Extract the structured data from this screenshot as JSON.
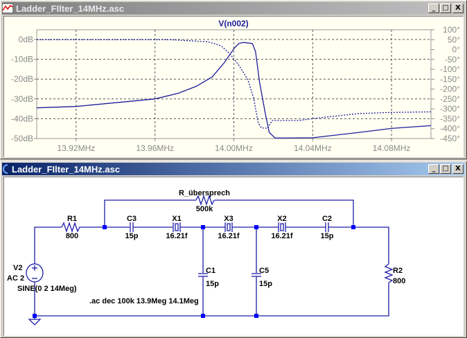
{
  "plot_window": {
    "title": "Ladder_FIlter_14MHz.asc",
    "icon": "waveform-icon",
    "buttons": [
      "_",
      "□",
      "X"
    ]
  },
  "schematic_window": {
    "title": "Ladder_FIlter_14MHz.asc",
    "icon": "schematic-icon",
    "buttons": [
      "_",
      "□",
      "X"
    ]
  },
  "colors": {
    "trace": "#1c1c9c",
    "axis_text": "#8a8a8a",
    "plot_bg": "#fffff2",
    "wire": "#1c1ca8",
    "junction": "#0000ff"
  },
  "chart_data": {
    "type": "line",
    "title": "V(n002)",
    "xlabel": "",
    "ylabel": "",
    "y2label": "",
    "xlim": [
      13.9,
      14.1
    ],
    "ylim": [
      -50,
      0
    ],
    "y2lim": [
      -450,
      100
    ],
    "grid": true,
    "x_ticks": [
      "13.92MHz",
      "13.96MHz",
      "14.00MHz",
      "14.04MHz",
      "14.08MHz"
    ],
    "x_tick_values": [
      13.92,
      13.96,
      14.0,
      14.04,
      14.08
    ],
    "y_ticks": [
      "0dB",
      "-10dB",
      "-20dB",
      "-30dB",
      "-40dB",
      "-50dB"
    ],
    "y_tick_values": [
      0,
      -10,
      -20,
      -30,
      -40,
      -50
    ],
    "y2_ticks": [
      "100°",
      "50°",
      "0°",
      "-50°",
      "-100°",
      "-150°",
      "-200°",
      "-250°",
      "-300°",
      "-350°",
      "-400°",
      "-450°"
    ],
    "y2_tick_values": [
      100,
      50,
      0,
      -50,
      -100,
      -150,
      -200,
      -250,
      -300,
      -350,
      -400,
      -450
    ],
    "series": [
      {
        "style": "solid",
        "axis": "left",
        "x": [
          13.9,
          13.92,
          13.96,
          13.972,
          13.981,
          13.989,
          13.995,
          14.0003,
          14.0026,
          14.005,
          14.0094,
          14.011,
          14.013,
          14.016,
          14.018,
          14.021,
          14.04,
          14.063,
          14.08,
          14.1
        ],
        "y": [
          -34.5,
          -33.8,
          -30.0,
          -27.1,
          -23.6,
          -18.9,
          -11.9,
          -4.3,
          -2.0,
          -1.5,
          -2.0,
          -6.1,
          -21.3,
          -37.6,
          -47,
          -49.8,
          -49.6,
          -47,
          -44.9,
          -43.5
        ]
      },
      {
        "style": "dashed",
        "axis": "right",
        "x": [
          13.9,
          13.968,
          13.987,
          13.9935,
          13.998,
          14.0026,
          14.007,
          14.01,
          14.0124,
          14.014,
          14.017,
          14.0195,
          14.033,
          14.04,
          14.063,
          14.08,
          14.1
        ],
        "y": [
          50,
          50,
          39,
          19,
          -22,
          -80,
          -150,
          -244,
          -373,
          -396,
          -398,
          -359,
          -359,
          -349,
          -324,
          -318,
          -315
        ]
      }
    ]
  },
  "schematic": {
    "R1": {
      "name": "R1",
      "value": "800"
    },
    "R_cross": {
      "name": "R_übersprech",
      "value": "500k"
    },
    "C3": {
      "name": "C3",
      "value": "15p"
    },
    "X1": {
      "name": "X1",
      "value": "16.21f"
    },
    "X3": {
      "name": "X3",
      "value": "16.21f"
    },
    "X2": {
      "name": "X2",
      "value": "16.21f"
    },
    "C2": {
      "name": "C2",
      "value": "15p"
    },
    "C1": {
      "name": "C1",
      "value": "15p"
    },
    "C5": {
      "name": "C5",
      "value": "15p"
    },
    "R2": {
      "name": "R2",
      "value": "800"
    },
    "V2": {
      "name": "V2",
      "ac": "AC 2",
      "value": "SINE(0 2 14Meg)"
    },
    "directive": ".ac dec 100k 13.9Meg 14.1Meg"
  }
}
